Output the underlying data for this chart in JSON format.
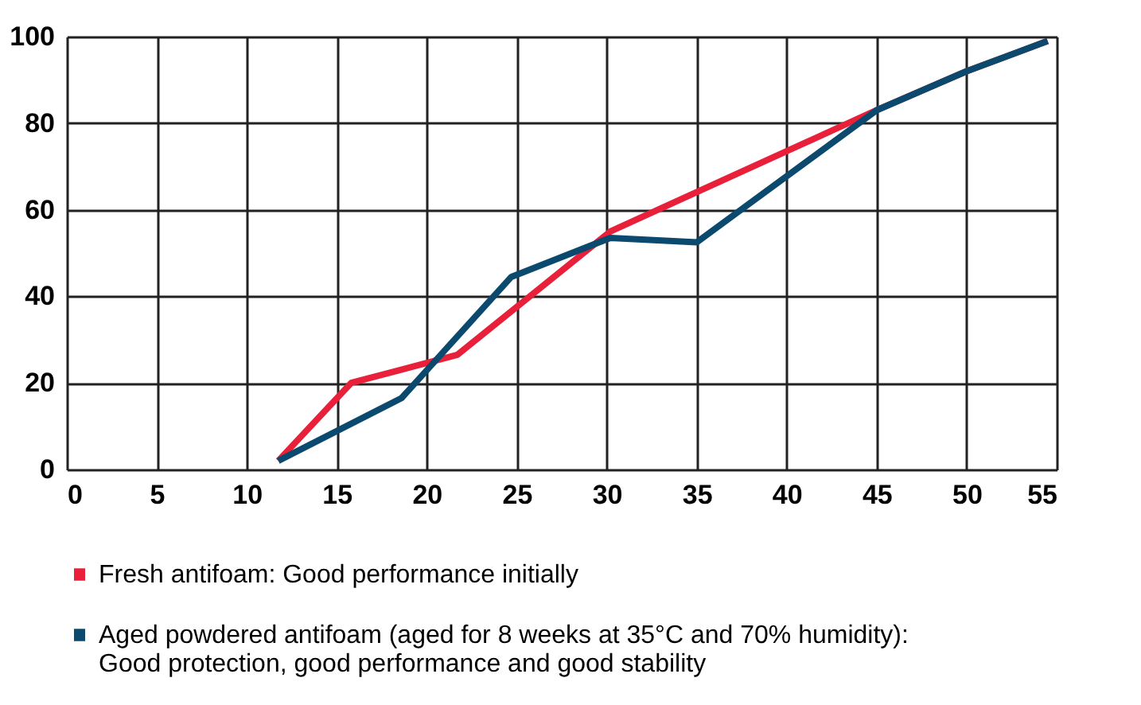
{
  "chart_data": {
    "type": "line",
    "series": [
      {
        "name": "Fresh antifoam: Good performance initially",
        "color": "#e8203a",
        "x": [
          11.75,
          15.8,
          21.7,
          30.2,
          45,
          50,
          54.5
        ],
        "values": [
          2,
          20,
          26.5,
          55,
          83,
          92,
          99
        ]
      },
      {
        "name": "Aged powdered antifoam (aged for 8 weeks at 35°C and 70% humidity): Good protection, good performance and good stability",
        "color": "#0b4a6e",
        "x": [
          11.75,
          18.6,
          24.7,
          30.2,
          35,
          45,
          50,
          54.5
        ],
        "values": [
          2,
          16.5,
          44.5,
          53.5,
          52.5,
          83,
          92,
          99
        ]
      }
    ],
    "xlim": [
      0,
      55
    ],
    "xticks": [
      0,
      5,
      10,
      15,
      20,
      25,
      30,
      35,
      40,
      45,
      50,
      55
    ],
    "ylim": [
      0,
      100
    ],
    "yticks": [
      0,
      20,
      40,
      60,
      80,
      100
    ],
    "grid": true,
    "legend": "bottom",
    "marker": "none",
    "line_style": "solid"
  }
}
